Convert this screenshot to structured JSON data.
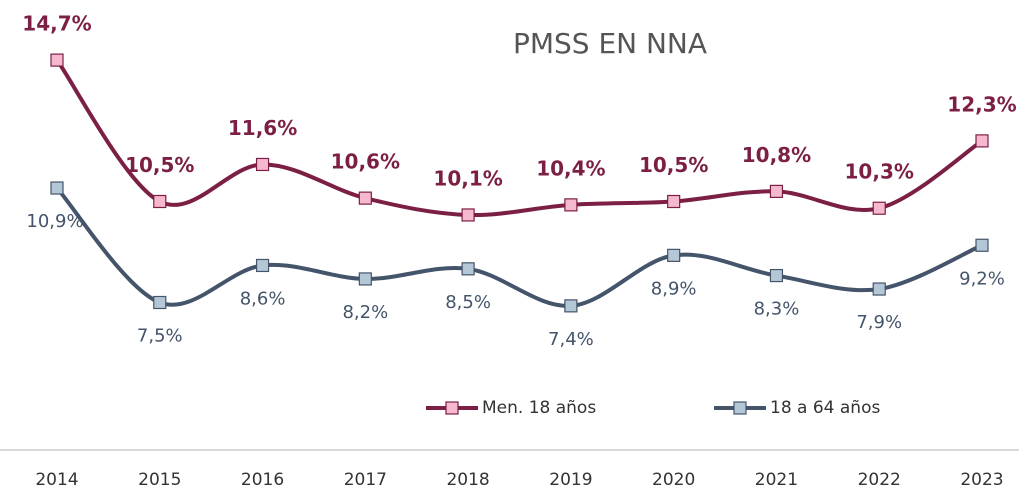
{
  "chart_data": {
    "type": "line",
    "title": "PMSS EN NNA",
    "categories": [
      "2014",
      "2015",
      "2016",
      "2017",
      "2018",
      "2019",
      "2020",
      "2021",
      "2022",
      "2023"
    ],
    "ylim": [
      6,
      15
    ],
    "series": [
      {
        "name": "Men. 18 años",
        "color": "#7b1f45",
        "marker_color": "#f5b8cf",
        "values": [
          14.7,
          10.5,
          11.6,
          10.6,
          10.1,
          10.4,
          10.5,
          10.8,
          10.3,
          12.3
        ],
        "value_labels": [
          "14,7%",
          "10,5%",
          "11,6%",
          "10,6%",
          "10,1%",
          "10,4%",
          "10,5%",
          "10,8%",
          "10,3%",
          "12,3%"
        ]
      },
      {
        "name": "18 a 64 años",
        "color": "#44546a",
        "marker_color": "#b4c7d6",
        "values": [
          10.9,
          7.5,
          8.6,
          8.2,
          8.5,
          7.4,
          8.9,
          8.3,
          7.9,
          9.2
        ],
        "value_labels": [
          "10,9%",
          "7,5%",
          "8,6%",
          "8,2%",
          "8,5%",
          "7,4%",
          "8,9%",
          "8,3%",
          "7,9%",
          "9,2%"
        ]
      }
    ]
  }
}
